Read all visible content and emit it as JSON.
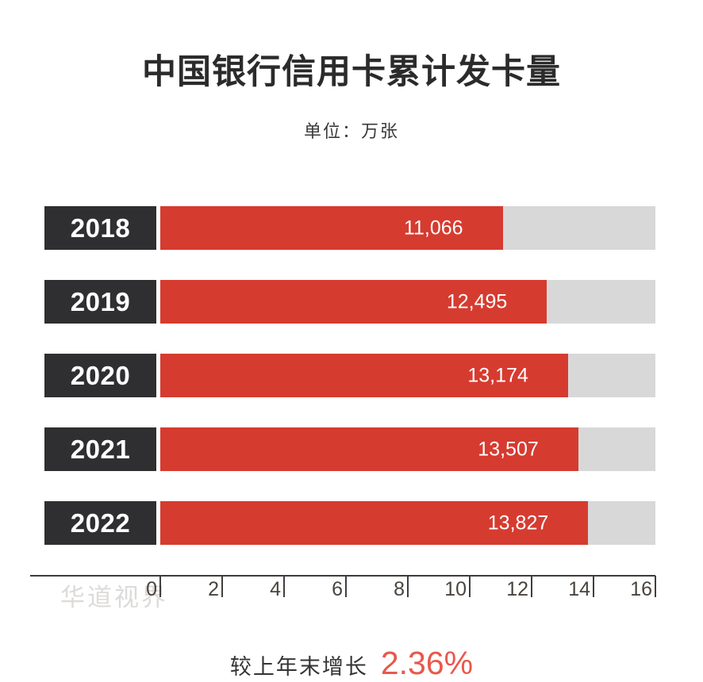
{
  "header": {
    "title": "中国银行信用卡累计发卡量",
    "subtitle": "单位：万张"
  },
  "chart_data": {
    "type": "bar",
    "orientation": "horizontal",
    "title": "中国银行信用卡累计发卡量",
    "unit_label": "单位：万张",
    "categories": [
      "2018",
      "2019",
      "2020",
      "2021",
      "2022"
    ],
    "values": [
      11066,
      12495,
      13174,
      13507,
      13827
    ],
    "value_labels": [
      "11,066",
      "12,495",
      "13,174",
      "13,507",
      "13,827"
    ],
    "xlim": [
      0,
      16000
    ],
    "axis_ticks": [
      "0",
      "2",
      "4",
      "6",
      "8",
      "10",
      "12",
      "14",
      "16"
    ],
    "axis_tick_values": [
      0,
      2000,
      4000,
      6000,
      8000,
      10000,
      12000,
      14000,
      16000
    ],
    "grid": false,
    "legend": false,
    "colors": {
      "bar": "#d63b30",
      "track": "#d8d8d8",
      "year_box": "#2f2f31",
      "axis": "#3b3b3b",
      "highlight": "#e8584c"
    }
  },
  "watermark": "华道视界",
  "footer": {
    "label": "较上年末增长",
    "value": "2.36%"
  }
}
